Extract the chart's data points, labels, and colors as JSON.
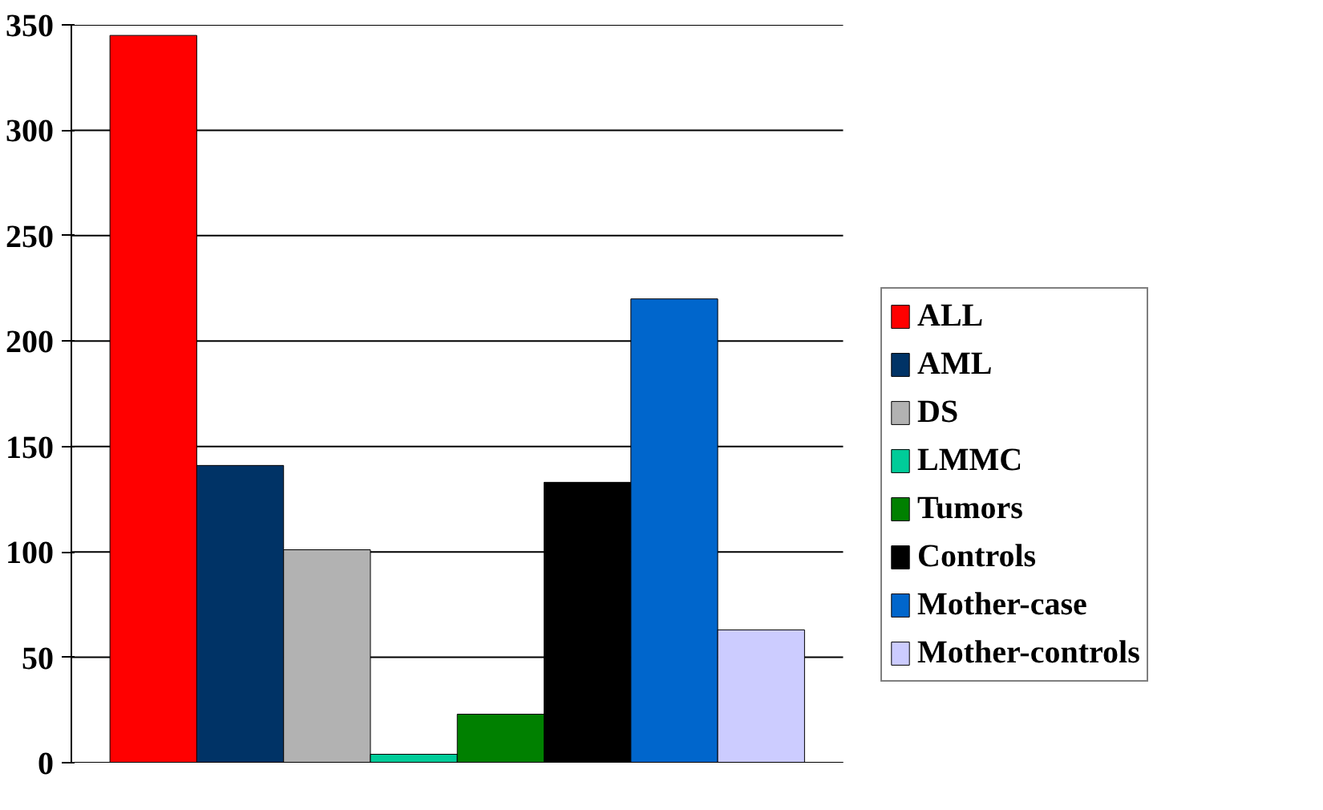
{
  "chart_data": {
    "type": "bar",
    "categories": [
      null
    ],
    "series": [
      {
        "name": "ALL",
        "color": "#ff0000",
        "values": [
          345
        ]
      },
      {
        "name": "AML",
        "color": "#003366",
        "values": [
          141
        ]
      },
      {
        "name": "DS",
        "color": "#b2b2b2",
        "values": [
          101
        ]
      },
      {
        "name": "LMMC",
        "color": "#00cc99",
        "values": [
          4
        ]
      },
      {
        "name": "Tumors",
        "color": "#008000",
        "values": [
          23
        ]
      },
      {
        "name": "Controls",
        "color": "#000000",
        "values": [
          133
        ]
      },
      {
        "name": "Mother-case",
        "color": "#0066cc",
        "values": [
          220
        ]
      },
      {
        "name": "Mother-controls",
        "color": "#ccccff",
        "values": [
          63
        ]
      }
    ],
    "ylim": [
      0,
      350
    ],
    "yticks": [
      0,
      50,
      100,
      150,
      200,
      250,
      300,
      350
    ],
    "grid": "y",
    "legend": "right"
  }
}
